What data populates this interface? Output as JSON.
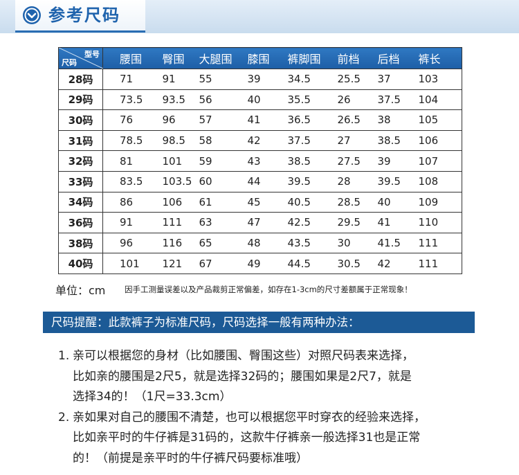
{
  "header": {
    "title": "参考尺码"
  },
  "table": {
    "corner_top": "型号",
    "corner_bottom": "尺码",
    "columns": [
      "腰围",
      "臀围",
      "大腿围",
      "膝围",
      "裤脚围",
      "前档",
      "后档",
      "裤长"
    ],
    "rows": [
      [
        "28码",
        "71",
        "91",
        "55",
        "39",
        "34.5",
        "25.5",
        "37",
        "103"
      ],
      [
        "29码",
        "73.5",
        "93.5",
        "56",
        "40",
        "35.5",
        "26",
        "37.5",
        "104"
      ],
      [
        "30码",
        "76",
        "96",
        "57",
        "41",
        "36.5",
        "26.5",
        "38",
        "105"
      ],
      [
        "31码",
        "78.5",
        "98.5",
        "58",
        "42",
        "37.5",
        "27",
        "38.5",
        "106"
      ],
      [
        "32码",
        "81",
        "101",
        "59",
        "43",
        "38.5",
        "27.5",
        "39",
        "107"
      ],
      [
        "33码",
        "83.5",
        "103.5",
        "60",
        "44",
        "39.5",
        "28",
        "39.5",
        "108"
      ],
      [
        "34码",
        "86",
        "106",
        "61",
        "45",
        "40.5",
        "28.5",
        "40",
        "109"
      ],
      [
        "36码",
        "91",
        "111",
        "63",
        "47",
        "42.5",
        "29.5",
        "41",
        "110"
      ],
      [
        "38码",
        "96",
        "116",
        "65",
        "48",
        "43.5",
        "30",
        "41.5",
        "111"
      ],
      [
        "40码",
        "101",
        "121",
        "67",
        "49",
        "44.5",
        "30.5",
        "42",
        "111"
      ]
    ]
  },
  "note": {
    "unit": "单位：cm",
    "text": "因手工测量误差以及产品裁剪正常偏差，如存在1-3cm的尺寸差额属于正常现象！"
  },
  "reminder": {
    "title": "尺码提醒：此款裤子为标准尺码，尺码选择一般有两种办法：",
    "items": [
      {
        "number": "1.",
        "lines": [
          "亲可以根据您的身材（比如腰围、臀围这些）对照尺码表来选择，",
          "比如亲的腰围是2尺5，就是选择32码的；腰围如果是2尺7，就是",
          "选择34的！（1尺=33.3cm）"
        ]
      },
      {
        "number": "2.",
        "lines": [
          "亲如果对自己的腰围不清楚，也可以根据您平时穿衣的经验来选择，",
          "比如亲平时的牛仔裤是31码的，这款牛仔裤亲一般选择31也是正常",
          "的！（前提是亲平时的牛仔裤尺码要标准哦）"
        ]
      }
    ]
  }
}
